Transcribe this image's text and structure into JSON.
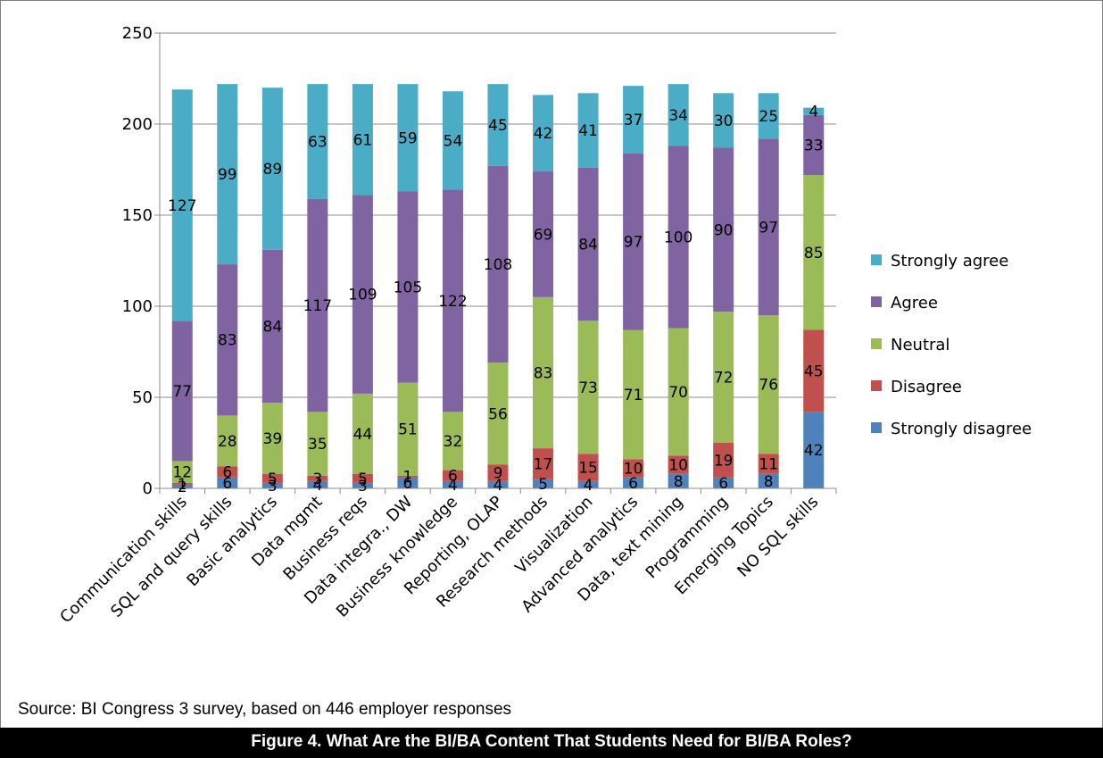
{
  "chart_data": {
    "type": "bar",
    "stacked": true,
    "categories": [
      "Communication skills",
      "SQL and query skills",
      "Basic analytics",
      "Data mgmt",
      "Business reqs",
      "Data integra., DW",
      "Business knowledge",
      "Reporting, OLAP",
      "Research methods",
      "Visualization",
      "Advanced analytics",
      "Data, text mining",
      "Programming",
      "Emerging Topics",
      "NO SQL skills"
    ],
    "series": [
      {
        "name": "Strongly disagree",
        "color": "#4f81bd",
        "values": [
          2,
          6,
          3,
          4,
          3,
          6,
          4,
          4,
          5,
          4,
          6,
          8,
          6,
          8,
          42
        ]
      },
      {
        "name": "Disagree",
        "color": "#c0504d",
        "values": [
          1,
          6,
          5,
          3,
          5,
          1,
          6,
          9,
          17,
          15,
          10,
          10,
          19,
          11,
          45
        ]
      },
      {
        "name": "Neutral",
        "color": "#9bbb59",
        "values": [
          12,
          28,
          39,
          35,
          44,
          51,
          32,
          56,
          83,
          73,
          71,
          70,
          72,
          76,
          85
        ]
      },
      {
        "name": "Agree",
        "color": "#8064a2",
        "values": [
          77,
          83,
          84,
          117,
          109,
          105,
          122,
          108,
          69,
          84,
          97,
          100,
          90,
          97,
          33
        ]
      },
      {
        "name": "Strongly agree",
        "color": "#4bacc6",
        "values": [
          127,
          99,
          89,
          63,
          61,
          59,
          54,
          45,
          42,
          41,
          37,
          34,
          30,
          25,
          4
        ]
      }
    ],
    "ylim": [
      0,
      250
    ],
    "yticks": [
      "0",
      "50",
      "100",
      "150",
      "200",
      "250"
    ],
    "grid": true,
    "legend": "right",
    "data_labels": true
  },
  "source_text": "Source: BI Congress 3 survey, based on 446 employer responses",
  "caption": "Figure 4. What Are the BI/BA Content That Students Need for BI/BA Roles?"
}
